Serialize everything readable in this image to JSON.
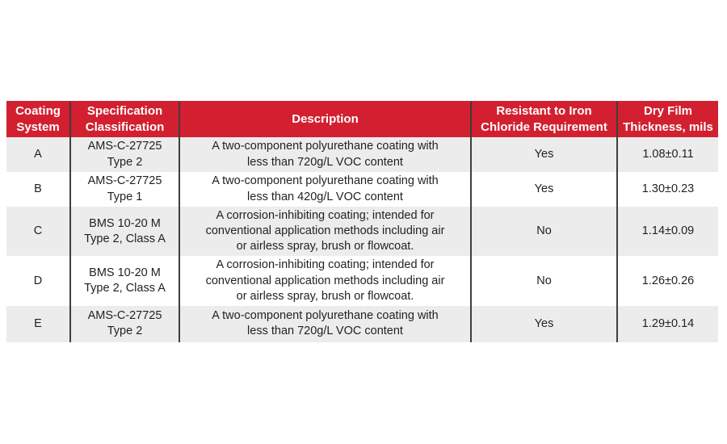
{
  "page": {
    "background_color": "#ffffff"
  },
  "table": {
    "colors": {
      "header_bg": "#d22030",
      "header_fg": "#ffffff",
      "row_alt_bg": "#ececec",
      "row_bg": "#ffffff",
      "border": "#3e3e3e",
      "text": "#231f20"
    },
    "columns": [
      {
        "key": "system",
        "label": "Coating\nSystem"
      },
      {
        "key": "spec",
        "label": "Specification\nClassification"
      },
      {
        "key": "description",
        "label": "Description"
      },
      {
        "key": "resistant",
        "label": "Resistant to Iron\nChloride Requirement"
      },
      {
        "key": "thickness",
        "label": "Dry Film\nThickness, mils"
      }
    ],
    "rows": [
      {
        "system": "A",
        "spec": "AMS-C-27725\nType 2",
        "description": "A two-component polyurethane coating with\nless than 720g/L VOC content",
        "resistant": "Yes",
        "thickness": "1.08±0.11"
      },
      {
        "system": "B",
        "spec": "AMS-C-27725\nType 1",
        "description": "A two-component polyurethane coating with\nless than 420g/L VOC content",
        "resistant": "Yes",
        "thickness": "1.30±0.23"
      },
      {
        "system": "C",
        "spec": "BMS 10-20 M\nType 2, Class A",
        "description": "A corrosion-inhibiting coating; intended for\nconventional application methods including air\nor airless spray, brush or flowcoat.",
        "resistant": "No",
        "thickness": "1.14±0.09"
      },
      {
        "system": "D",
        "spec": "BMS 10-20 M\nType 2, Class A",
        "description": "A corrosion-inhibiting coating; intended for\nconventional application methods including air\nor airless spray, brush or flowcoat.",
        "resistant": "No",
        "thickness": "1.26±0.26"
      },
      {
        "system": "E",
        "spec": "AMS-C-27725\nType 2",
        "description": "A two-component polyurethane coating with\nless than 720g/L VOC content",
        "resistant": "Yes",
        "thickness": "1.29±0.14"
      }
    ]
  },
  "chart_data": {
    "type": "table",
    "title": "",
    "columns": [
      "Coating System",
      "Specification Classification",
      "Description",
      "Resistant to Iron Chloride Requirement",
      "Dry Film Thickness, mils"
    ],
    "rows": [
      [
        "A",
        "AMS-C-27725 Type 2",
        "A two-component polyurethane coating with less than 720g/L VOC content",
        "Yes",
        "1.08±0.11"
      ],
      [
        "B",
        "AMS-C-27725 Type 1",
        "A two-component polyurethane coating with less than 420g/L VOC content",
        "Yes",
        "1.30±0.23"
      ],
      [
        "C",
        "BMS 10-20 M Type 2, Class A",
        "A corrosion-inhibiting coating; intended for conventional application methods including air or airless spray, brush or flowcoat.",
        "No",
        "1.14±0.09"
      ],
      [
        "D",
        "BMS 10-20 M Type 2, Class A",
        "A corrosion-inhibiting coating; intended for conventional application methods including air or airless spray, brush or flowcoat.",
        "No",
        "1.26±0.26"
      ],
      [
        "E",
        "AMS-C-27725 Type 2",
        "A two-component polyurethane coating with less than 720g/L VOC content",
        "Yes",
        "1.29±0.14"
      ]
    ],
    "thickness_values": [
      {
        "system": "A",
        "mean": 1.08,
        "tolerance": 0.11
      },
      {
        "system": "B",
        "mean": 1.3,
        "tolerance": 0.23
      },
      {
        "system": "C",
        "mean": 1.14,
        "tolerance": 0.09
      },
      {
        "system": "D",
        "mean": 1.26,
        "tolerance": 0.26
      },
      {
        "system": "E",
        "mean": 1.29,
        "tolerance": 0.14
      }
    ]
  }
}
